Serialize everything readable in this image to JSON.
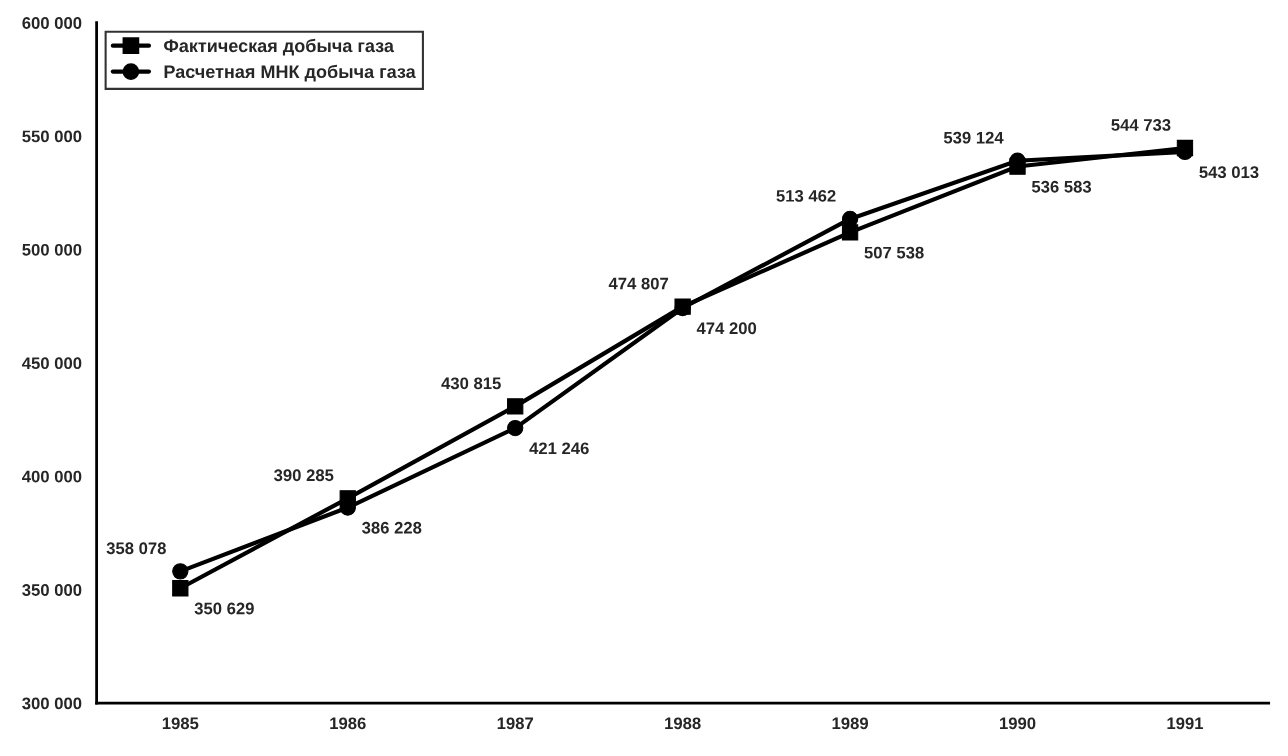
{
  "chart_data": {
    "type": "line",
    "categories": [
      "1985",
      "1986",
      "1987",
      "1988",
      "1989",
      "1990",
      "1991"
    ],
    "series": [
      {
        "name": "Фактическая добыча газа",
        "color": "#000000",
        "marker": "square",
        "values": [
          350629,
          390285,
          430815,
          474807,
          507538,
          536583,
          544733
        ],
        "value_labels": [
          "350 629",
          "390 285",
          "430 815",
          "474 807",
          "507 538",
          "536 583",
          "544 733"
        ]
      },
      {
        "name": "Расчетная МНК добыча газа",
        "color": "#000000",
        "marker": "circle",
        "values": [
          358078,
          386228,
          421246,
          474200,
          513462,
          539124,
          543013
        ],
        "value_labels": [
          "358 078",
          "386 228",
          "421 246",
          "474 200",
          "513 462",
          "539 124",
          "543 013"
        ]
      }
    ],
    "ylim": [
      300000,
      600000
    ],
    "yticks": [
      {
        "value": 300000,
        "label": "300 000"
      },
      {
        "value": 350000,
        "label": "350 000"
      },
      {
        "value": 400000,
        "label": "400 000"
      },
      {
        "value": 450000,
        "label": "450 000"
      },
      {
        "value": 500000,
        "label": "500 000"
      },
      {
        "value": 550000,
        "label": "550 000"
      },
      {
        "value": 600000,
        "label": "600 000"
      }
    ],
    "grid": false,
    "legend": "top left",
    "line_style": "solid"
  }
}
